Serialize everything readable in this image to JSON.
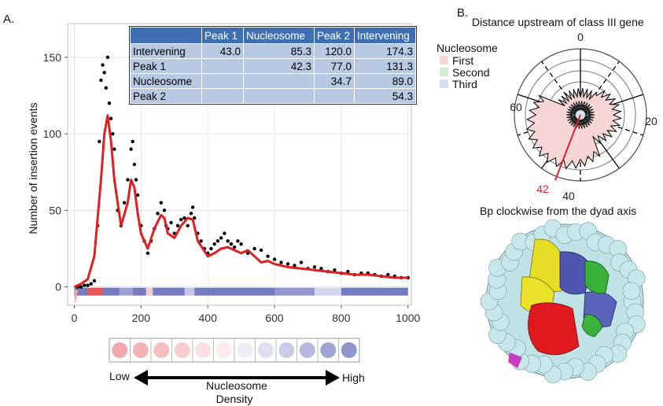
{
  "panel_a_label": "A.",
  "panel_b_label": "B.",
  "chart_data": [
    {
      "type": "scatter",
      "ylabel": "Number of insertion events",
      "xlim": [
        -20,
        1010
      ],
      "ylim": [
        -12,
        172
      ],
      "xticks": [
        0,
        200,
        400,
        600,
        800,
        1000
      ],
      "yticks": [
        0,
        50,
        100,
        150
      ],
      "series": [
        {
          "kind": "points",
          "color": "#000000",
          "x": [
            10,
            20,
            30,
            40,
            50,
            60,
            70,
            75,
            80,
            85,
            90,
            95,
            100,
            105,
            110,
            115,
            120,
            130,
            140,
            150,
            160,
            170,
            175,
            180,
            185,
            190,
            200,
            210,
            220,
            230,
            240,
            250,
            260,
            270,
            275,
            280,
            290,
            300,
            310,
            320,
            330,
            340,
            350,
            355,
            360,
            370,
            380,
            390,
            400,
            410,
            420,
            430,
            440,
            450,
            460,
            470,
            480,
            490,
            500,
            520,
            540,
            560,
            580,
            600,
            620,
            640,
            660,
            680,
            700,
            720,
            740,
            760,
            780,
            800,
            820,
            840,
            860,
            880,
            900,
            920,
            940,
            960,
            980,
            1000
          ],
          "y": [
            0,
            0,
            1,
            1,
            2,
            4,
            40,
            95,
            135,
            145,
            140,
            130,
            150,
            120,
            110,
            100,
            90,
            50,
            40,
            55,
            70,
            90,
            95,
            80,
            70,
            60,
            40,
            30,
            22,
            30,
            38,
            48,
            55,
            50,
            40,
            38,
            42,
            35,
            40,
            44,
            45,
            40,
            48,
            52,
            45,
            35,
            30,
            25,
            22,
            25,
            28,
            30,
            32,
            35,
            30,
            28,
            26,
            30,
            28,
            22,
            25,
            24,
            20,
            18,
            16,
            15,
            14,
            16,
            12,
            13,
            12,
            10,
            11,
            9,
            10,
            8,
            9,
            9,
            8,
            7,
            8,
            7,
            6,
            6
          ]
        },
        {
          "kind": "smooth",
          "color": "#e02020",
          "x": [
            0,
            20,
            40,
            60,
            80,
            90,
            100,
            110,
            120,
            140,
            160,
            170,
            180,
            190,
            200,
            220,
            240,
            260,
            270,
            280,
            300,
            320,
            340,
            355,
            370,
            400,
            420,
            440,
            460,
            480,
            500,
            520,
            540,
            560,
            580,
            600,
            640,
            680,
            720,
            760,
            800,
            840,
            880,
            920,
            960,
            1000
          ],
          "y": [
            0,
            2,
            5,
            20,
            70,
            100,
            112,
            95,
            70,
            40,
            55,
            70,
            65,
            48,
            35,
            25,
            38,
            47,
            45,
            35,
            32,
            40,
            45,
            44,
            30,
            20,
            22,
            25,
            26,
            24,
            22,
            24,
            20,
            16,
            17,
            15,
            13,
            12,
            11,
            10,
            9,
            8,
            8,
            7,
            6,
            6
          ]
        }
      ],
      "table": {
        "columns": [
          "",
          "Peak 1",
          "Nucleosome",
          "Peak 2",
          "Intervening"
        ],
        "rows": [
          [
            "Intervening",
            "43.0",
            "85.3",
            "120.0",
            "174.3"
          ],
          [
            "Peak 1",
            "",
            "42.3",
            "77.0",
            "131.3"
          ],
          [
            "Nucleosome",
            "",
            "",
            "34.7",
            "89.0"
          ],
          [
            "Peak 2",
            "",
            "",
            "",
            "54.3"
          ]
        ]
      },
      "density_scale": {
        "colors": [
          "#f2a7ab",
          "#f4b3b6",
          "#f6c0c2",
          "#f8cfd1",
          "#fadfe0",
          "#fcecec",
          "#eeeef7",
          "#dedff0",
          "#cbcce7",
          "#b6b8de",
          "#a2a5d4",
          "#9195cc"
        ],
        "low_label": "Low",
        "high_label": "High",
        "caption": "Nucleosome Density"
      }
    },
    {
      "type": "polar",
      "title": "Distance upstream of class III gene",
      "subtitle": "Bp clockwise from the dyad axis",
      "angle_ticks": [
        "0",
        "20",
        "40",
        "60"
      ],
      "highlight": "42",
      "legend": {
        "title": "Nucleosome",
        "entries": [
          {
            "label": "First",
            "color": "#f9d6d6"
          },
          {
            "label": "Second",
            "color": "#d4ecd0"
          },
          {
            "label": "Third",
            "color": "#d8e0f0"
          }
        ]
      }
    }
  ]
}
